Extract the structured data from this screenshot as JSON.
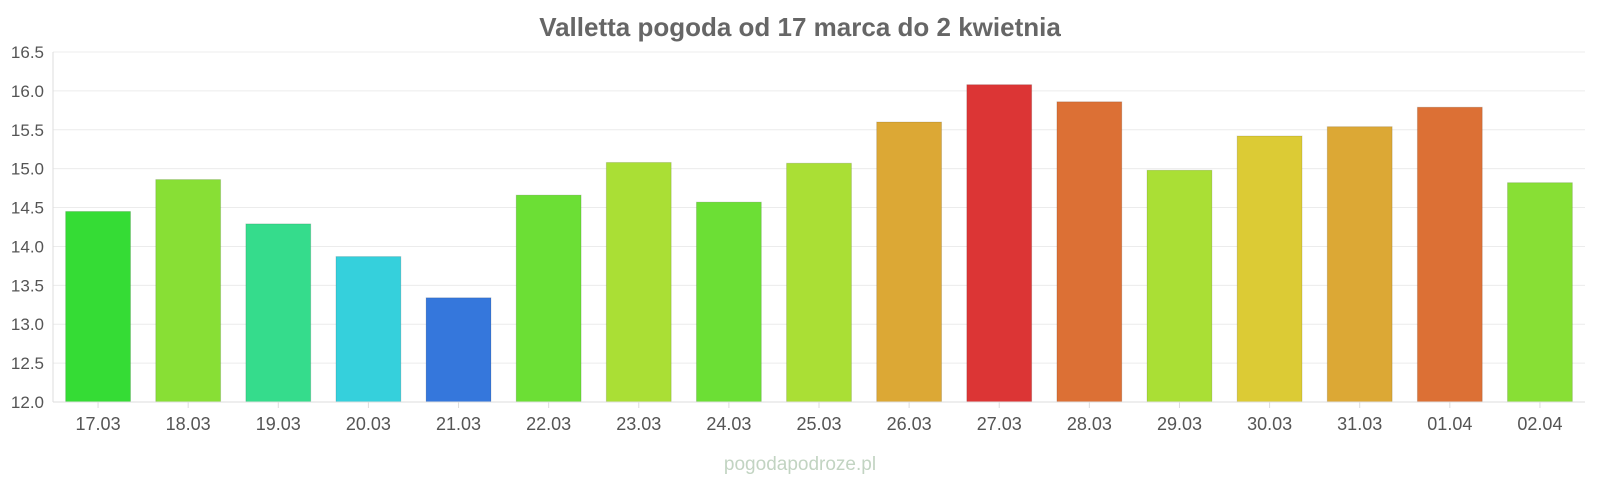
{
  "chart_data": {
    "type": "bar",
    "title": "Valletta pogoda od 17 marca do 2 kwietnia",
    "xlabel": "",
    "ylabel": "",
    "ylim": [
      12.0,
      16.5
    ],
    "yticks": [
      "12.0",
      "12.5",
      "13.0",
      "13.5",
      "14.0",
      "14.5",
      "15.0",
      "15.5",
      "16.0",
      "16.5"
    ],
    "grid": true,
    "categories": [
      "17.03",
      "18.03",
      "19.03",
      "20.03",
      "21.03",
      "22.03",
      "23.03",
      "24.03",
      "25.03",
      "26.03",
      "27.03",
      "28.03",
      "29.03",
      "30.03",
      "31.03",
      "01.04",
      "02.04"
    ],
    "values": [
      14.45,
      14.86,
      14.29,
      13.87,
      13.34,
      14.66,
      15.08,
      14.57,
      15.07,
      15.6,
      16.08,
      15.86,
      14.98,
      15.42,
      15.54,
      15.79,
      14.82
    ],
    "colors": [
      "#35dc35",
      "#88df35",
      "#35dc8c",
      "#35d0dc",
      "#3577dc",
      "#6cdf35",
      "#aadf35",
      "#6cdf35",
      "#aadf35",
      "#dca835",
      "#dc3535",
      "#dc7035",
      "#aadf35",
      "#dccb35",
      "#dca835",
      "#dc7035",
      "#88df35"
    ]
  },
  "footer": {
    "source": "pogodapodroze.pl"
  }
}
